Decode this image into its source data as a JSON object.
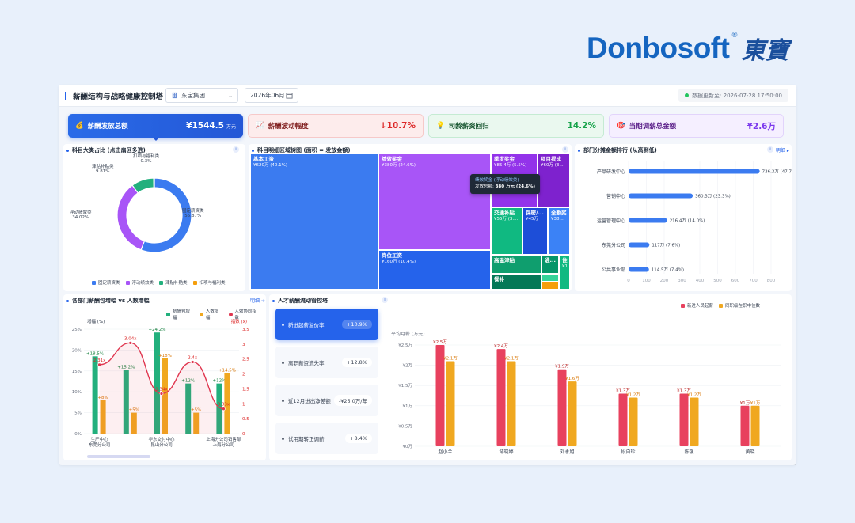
{
  "brand": {
    "name": "Donbosoft",
    "reg": "®",
    "cn": "東寶"
  },
  "header": {
    "title": "薪酬结构与战略健康控制塔",
    "org": "东宝集团",
    "period": "2026年06月",
    "update": "数据更新至: 2026-07-28 17:50:00"
  },
  "kpis": [
    {
      "label": "薪酬发放总额",
      "value": "¥1544.5",
      "unit": "万元",
      "icon": "money-bag-icon"
    },
    {
      "label": "薪酬波动幅度",
      "value": "↓10.7%",
      "icon": "chart-icon"
    },
    {
      "label": "司龄薪资回归",
      "value": "14.2%",
      "icon": "bulb-icon"
    },
    {
      "label": "当期调薪总金额",
      "value": "¥2.6万",
      "icon": "target-icon"
    }
  ],
  "donut": {
    "title": "科目大类占比 (点击扇区多选)",
    "info": "i",
    "labels": [
      {
        "name": "固定薪资类",
        "pct": "55.87%"
      },
      {
        "name": "浮动绩效类",
        "pct": "34.02%"
      },
      {
        "name": "津贴补贴类",
        "pct": "9.81%"
      },
      {
        "name": "扣项与福利类",
        "pct": "0.3%"
      }
    ],
    "values": [
      55.87,
      34.02,
      9.81,
      0.3
    ],
    "colors": [
      "#3b7bf0",
      "#a855f7",
      "#22b07d",
      "#f59e0b"
    ]
  },
  "treemap": {
    "title": "科目明细区域树图 (面积 = 发放金额)",
    "info": "i",
    "cells": [
      {
        "name": "基本工资",
        "val": "¥620万 (40.1%)"
      },
      {
        "name": "绩效奖金",
        "val": "¥380万 (24.6%)"
      },
      {
        "name": "季度奖金",
        "val": "¥85.4万 (5.5%)"
      },
      {
        "name": "项目提成",
        "val": "¥60万 (3..."
      },
      {
        "name": "岗位工资",
        "val": "¥160万 (10.4%)"
      },
      {
        "name": "交通补贴",
        "val": "¥55万 (3...."
      },
      {
        "name": "保密/...",
        "val": "¥45万"
      },
      {
        "name": "全勤奖",
        "val": "¥38..."
      },
      {
        "name": "高温津贴",
        "val": ""
      },
      {
        "name": "通...",
        "val": ""
      },
      {
        "name": "住",
        "val": "¥1"
      },
      {
        "name": "餐补",
        "val": ""
      }
    ],
    "tooltip": {
      "title": "绩效奖金 (浮动绩效类)",
      "line_label": "发放总额:",
      "line_value": "380 万元 (24.6%)"
    }
  },
  "dept": {
    "title": "部门分摊金额排行 (从高到低)",
    "info": "i",
    "link": "明细 ▸",
    "rows": [
      {
        "name": "产品研发中心",
        "label": "736.3万 (47.7%)",
        "value": 736.3
      },
      {
        "name": "营销中心",
        "label": "360.3万 (23.3%)",
        "value": 360.3
      },
      {
        "name": "运营管理中心",
        "label": "216.4万 (14.0%)",
        "value": 216.4
      },
      {
        "name": "东莞分公司",
        "label": "117万 (7.6%)",
        "value": 117
      },
      {
        "name": "公共事业部",
        "label": "114.5万 (7.4%)",
        "value": 114.5
      }
    ],
    "axis": [
      "0",
      "100",
      "200",
      "300",
      "400",
      "500",
      "600",
      "700",
      "800"
    ],
    "xmax": 800
  },
  "combo": {
    "title": "各部门薪酬包增幅 vs 人数增幅",
    "link": "明细 ➔",
    "legend": [
      "薪酬包增幅",
      "人数增幅",
      "人效协同指数"
    ],
    "ylabel_left": "增幅 (%)",
    "ylabel_right": "指数 (x)",
    "yleft": [
      "25%",
      "20%",
      "15%",
      "10%",
      "5%",
      "0%"
    ],
    "yright": [
      "3.5",
      "3",
      "2.5",
      "2",
      "1.5",
      "1",
      "0.5",
      "0"
    ],
    "cats": [
      {
        "top": "生产中心",
        "bottom": "东莞分公司"
      },
      {
        "top": "",
        "bottom": ""
      },
      {
        "top": "华东交付中心",
        "bottom": "昆山分公司"
      },
      {
        "top": "",
        "bottom": ""
      },
      {
        "top": "上海分公司销售部",
        "bottom": "上海分公司"
      }
    ],
    "pay": [
      18.5,
      15.2,
      24.2,
      12,
      12
    ],
    "pay_labels": [
      "+18.5%",
      "+15.2%",
      "+24.2%",
      "+12%",
      "+12%"
    ],
    "head": [
      8,
      5,
      18,
      5,
      14.5
    ],
    "head_labels": [
      "+8%",
      "+5%",
      "+18%",
      "+5%",
      "+14.5%"
    ],
    "idx": [
      2.31,
      3.04,
      1.34,
      2.4,
      0.83
    ],
    "idx_labels": [
      "2.31x",
      "3.04x",
      "1.34x",
      "2.4x",
      "0.83x"
    ]
  },
  "talent": {
    "title": "人才薪酬流动管控塔",
    "info": "i",
    "cards": [
      {
        "label": "新进起薪溢价率",
        "value": "+10.9%"
      },
      {
        "label": "离职薪资流失率",
        "value": "+12.8%"
      },
      {
        "label": "近12月进出净差额",
        "value": "-¥25.0万/年"
      },
      {
        "label": "试用期转正调薪",
        "value": "+8.4%"
      }
    ],
    "legend": [
      "新进人员起薪",
      "同职级在职中位数"
    ],
    "ylabel": "平均月薪 (万元)",
    "yaxis": [
      "¥2.5万",
      "¥2万",
      "¥1.5万",
      "¥1万",
      "¥0.5万",
      "¥0万"
    ],
    "ymax": 2.5,
    "people": [
      {
        "name": "赵小兰",
        "a": 2.5,
        "b": 2.1,
        "al": "¥2.5万",
        "bl": "¥2.1万"
      },
      {
        "name": "邹晓婷",
        "a": 2.4,
        "b": 2.1,
        "al": "¥2.4万",
        "bl": "¥2.1万"
      },
      {
        "name": "刘永旭",
        "a": 1.9,
        "b": 1.6,
        "al": "¥1.9万",
        "bl": "¥1.6万"
      },
      {
        "name": "段自珍",
        "a": 1.3,
        "b": 1.2,
        "al": "¥1.3万",
        "bl": "¥1.2万"
      },
      {
        "name": "陈强",
        "a": 1.3,
        "b": 1.2,
        "al": "¥1.3万",
        "bl": "¥1.2万"
      },
      {
        "name": "黄晓",
        "a": 1,
        "b": 1,
        "al": "¥1万",
        "bl": "¥1万"
      }
    ]
  }
}
